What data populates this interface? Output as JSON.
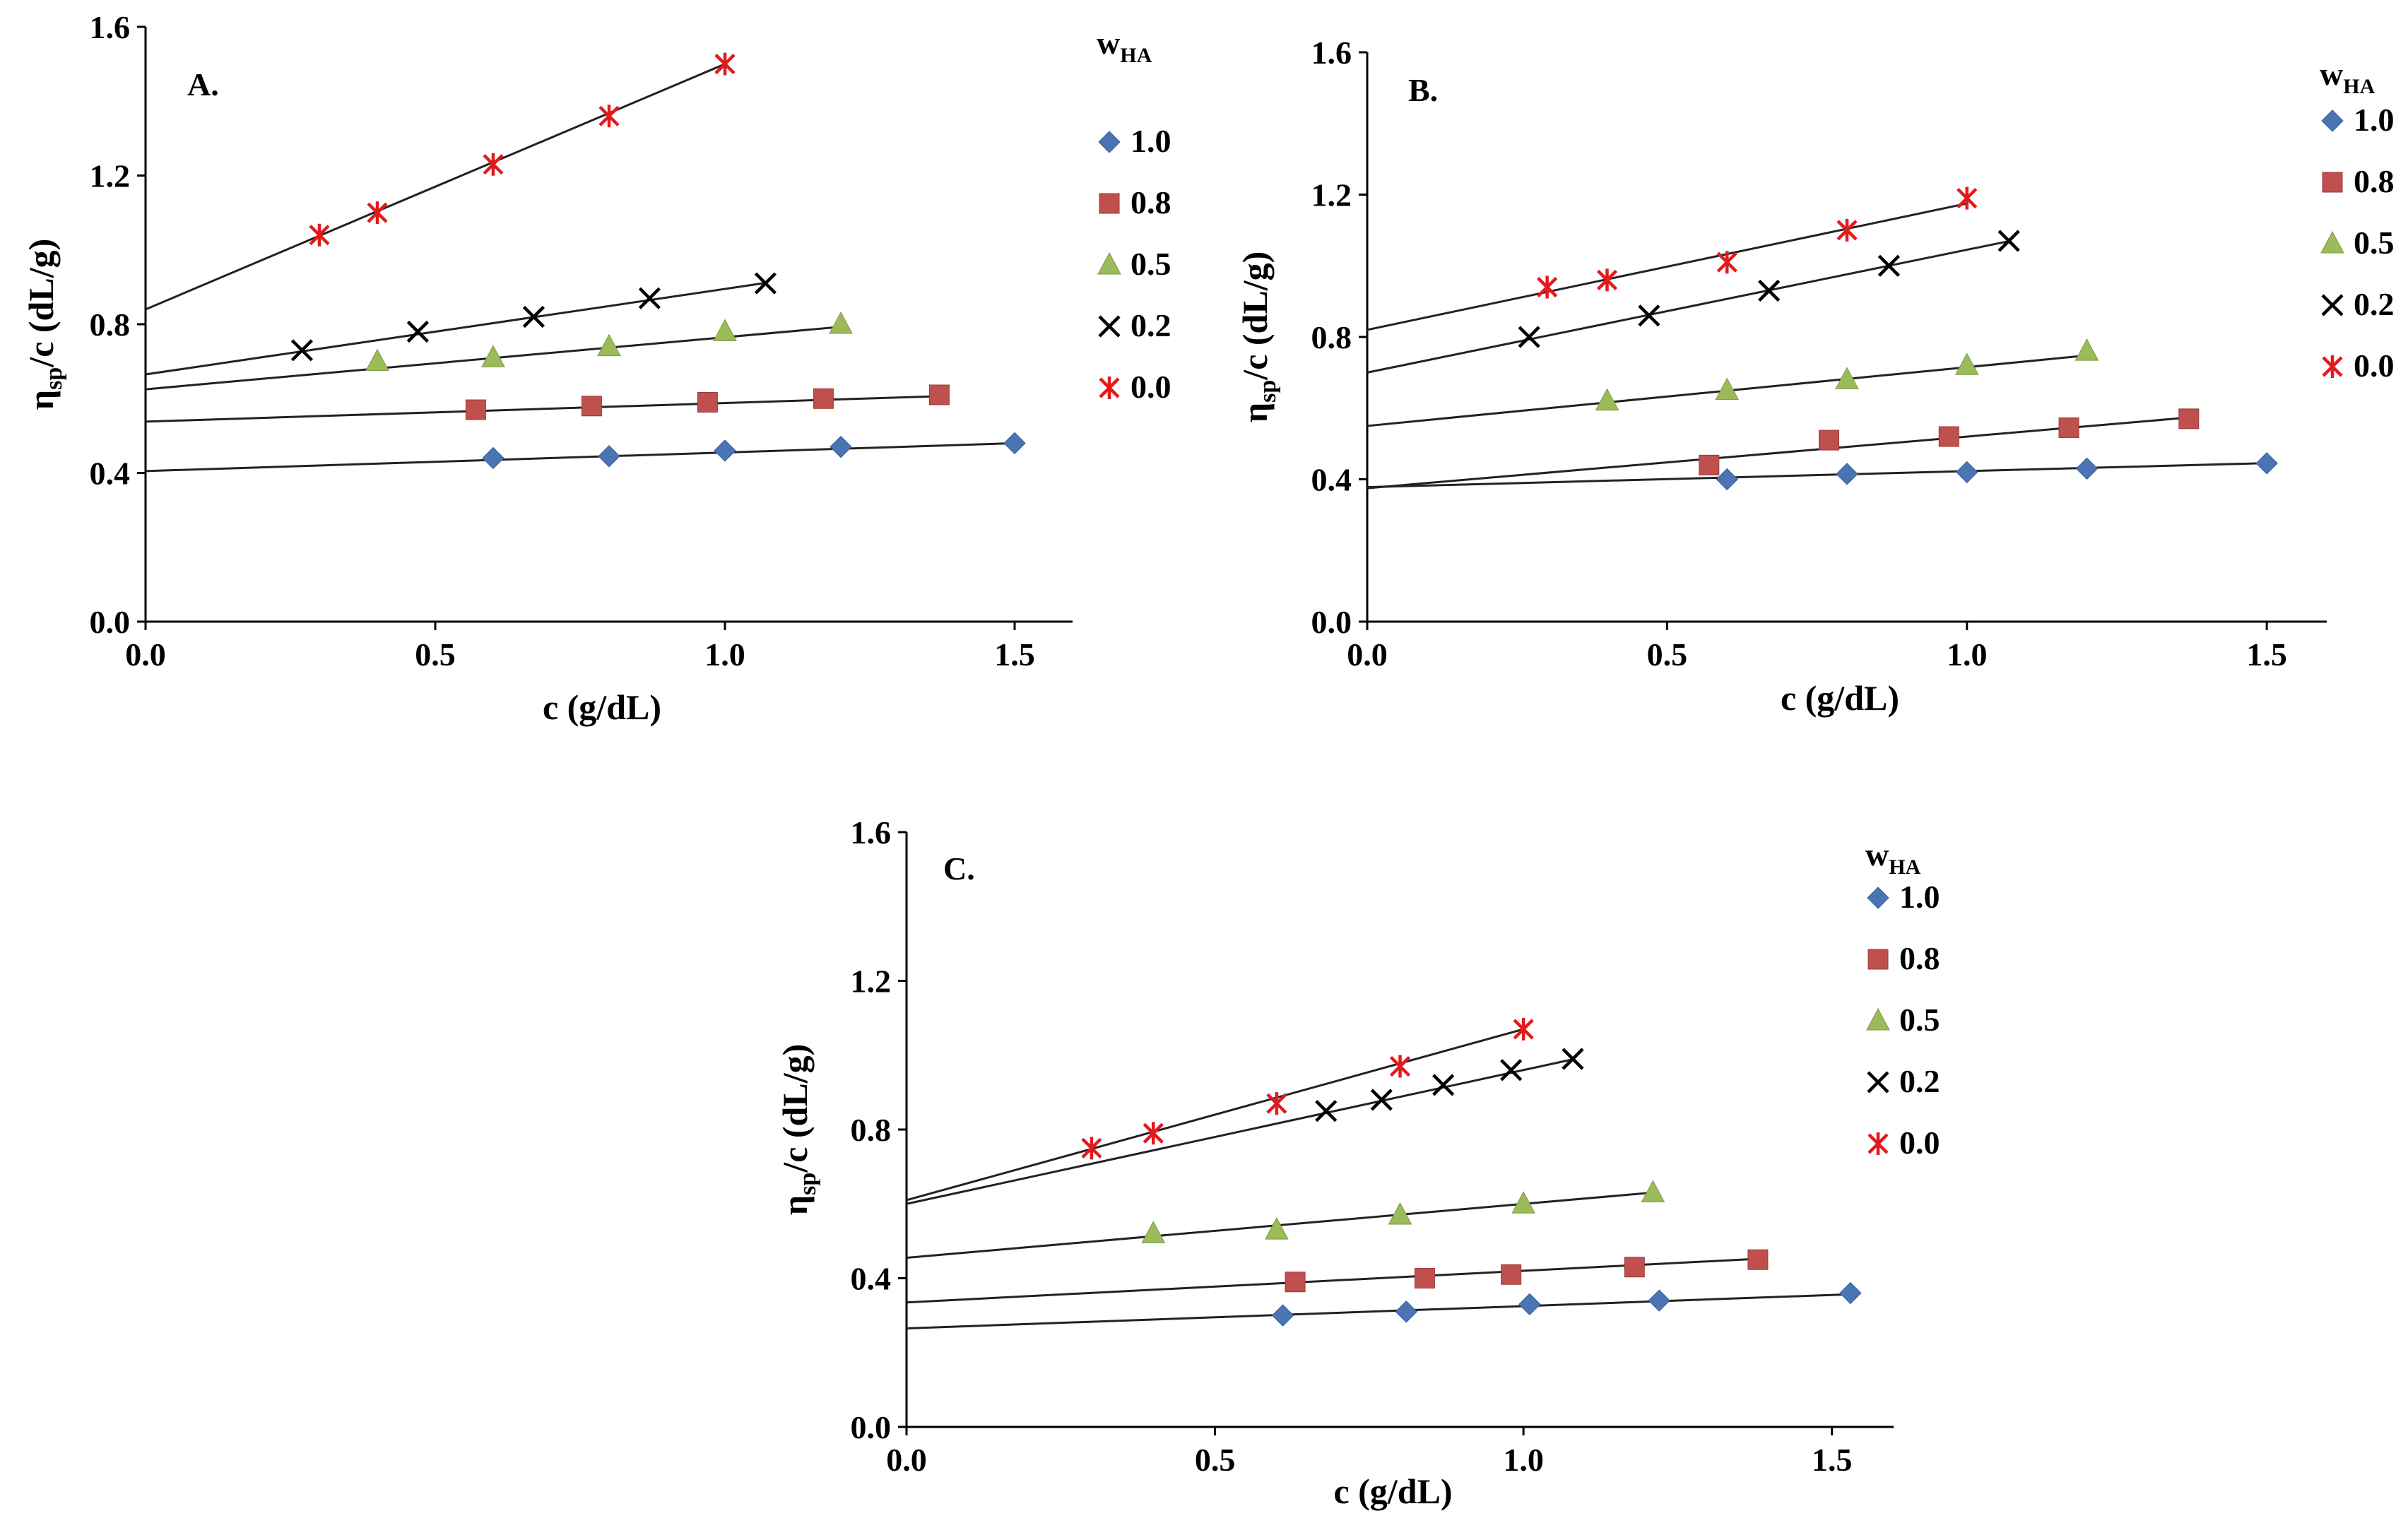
{
  "figure": {
    "axis": {
      "xlabel": "c (g/dL)",
      "ylabel_eta": "η",
      "ylabel_sub": "sp",
      "ylabel_rest": "/c (dL/g)",
      "xticks": [
        "0.0",
        "0.5",
        "1.0",
        "1.5"
      ],
      "yticks": [
        "0.0",
        "0.4",
        "0.8",
        "1.2",
        "1.6"
      ]
    },
    "legend": {
      "title_main": "w",
      "title_sub": "HA"
    }
  },
  "series_styles": [
    {
      "marker": "diamond",
      "color": "#4a74b4"
    },
    {
      "marker": "square",
      "color": "#c0504d"
    },
    {
      "marker": "triangle",
      "color": "#9bbb59"
    },
    {
      "marker": "x",
      "color": "#000000"
    },
    {
      "marker": "star",
      "color": "#e31a1c"
    }
  ],
  "chart_data": [
    {
      "type": "scatter",
      "panel": "A.",
      "xlabel": "c (g/dL)",
      "ylabel": "ηsp/c (dL/g)",
      "xlim": [
        0,
        1.6
      ],
      "ylim": [
        0,
        1.6
      ],
      "series": [
        {
          "name": "1.0",
          "x": [
            0.6,
            0.8,
            1.0,
            1.2,
            1.5
          ],
          "y": [
            0.44,
            0.445,
            0.46,
            0.47,
            0.48
          ],
          "fit": [
            0.405,
            0.05
          ]
        },
        {
          "name": "0.8",
          "x": [
            0.57,
            0.77,
            0.97,
            1.17,
            1.37
          ],
          "y": [
            0.57,
            0.58,
            0.59,
            0.6,
            0.61
          ],
          "fit": [
            0.538,
            0.05
          ]
        },
        {
          "name": "0.5",
          "x": [
            0.4,
            0.6,
            0.8,
            1.0,
            1.2
          ],
          "y": [
            0.7,
            0.71,
            0.74,
            0.78,
            0.8
          ],
          "fit": [
            0.625,
            0.14
          ]
        },
        {
          "name": "0.2",
          "x": [
            0.27,
            0.47,
            0.67,
            0.87,
            1.07
          ],
          "y": [
            0.73,
            0.78,
            0.82,
            0.87,
            0.91
          ],
          "fit": [
            0.665,
            0.23
          ]
        },
        {
          "name": "0.0",
          "x": [
            0.3,
            0.4,
            0.6,
            0.8,
            1.0
          ],
          "y": [
            1.04,
            1.1,
            1.23,
            1.36,
            1.5
          ],
          "fit": [
            0.84,
            0.66
          ]
        }
      ]
    },
    {
      "type": "scatter",
      "panel": "B.",
      "xlabel": "c (g/dL)",
      "ylabel": "ηsp/c (dL/g)",
      "xlim": [
        0,
        1.6
      ],
      "ylim": [
        0,
        1.6
      ],
      "series": [
        {
          "name": "1.0",
          "x": [
            0.6,
            0.8,
            1.0,
            1.2,
            1.5
          ],
          "y": [
            0.4,
            0.415,
            0.42,
            0.43,
            0.445
          ],
          "fit": [
            0.378,
            0.045
          ]
        },
        {
          "name": "0.8",
          "x": [
            0.57,
            0.77,
            0.97,
            1.17,
            1.37
          ],
          "y": [
            0.44,
            0.51,
            0.52,
            0.545,
            0.57
          ],
          "fit": [
            0.375,
            0.145
          ]
        },
        {
          "name": "0.5",
          "x": [
            0.4,
            0.6,
            0.8,
            1.0,
            1.2
          ],
          "y": [
            0.62,
            0.65,
            0.68,
            0.72,
            0.76
          ],
          "fit": [
            0.55,
            0.165
          ]
        },
        {
          "name": "0.2",
          "x": [
            0.27,
            0.47,
            0.67,
            0.87,
            1.07
          ],
          "y": [
            0.8,
            0.86,
            0.93,
            1.0,
            1.07
          ],
          "fit": [
            0.7,
            0.345
          ]
        },
        {
          "name": "0.0",
          "x": [
            0.3,
            0.4,
            0.6,
            0.8,
            1.0
          ],
          "y": [
            0.94,
            0.96,
            1.01,
            1.1,
            1.19
          ],
          "fit": [
            0.82,
            0.355
          ]
        }
      ]
    },
    {
      "type": "scatter",
      "panel": "C.",
      "xlabel": "c (g/dL)",
      "ylabel": "ηsp/c (dL/g)",
      "xlim": [
        0,
        1.6
      ],
      "ylim": [
        0,
        1.6
      ],
      "series": [
        {
          "name": "1.0",
          "x": [
            0.61,
            0.81,
            1.01,
            1.22,
            1.53
          ],
          "y": [
            0.3,
            0.31,
            0.33,
            0.34,
            0.36
          ],
          "fit": [
            0.265,
            0.06
          ]
        },
        {
          "name": "0.8",
          "x": [
            0.63,
            0.84,
            0.98,
            1.18,
            1.38
          ],
          "y": [
            0.39,
            0.4,
            0.41,
            0.43,
            0.45
          ],
          "fit": [
            0.335,
            0.085
          ]
        },
        {
          "name": "0.5",
          "x": [
            0.4,
            0.6,
            0.8,
            1.0,
            1.21
          ],
          "y": [
            0.52,
            0.53,
            0.57,
            0.6,
            0.63
          ],
          "fit": [
            0.455,
            0.145
          ]
        },
        {
          "name": "0.2",
          "x": [
            0.68,
            0.77,
            0.87,
            0.98,
            1.08
          ],
          "y": [
            0.85,
            0.88,
            0.92,
            0.96,
            0.99
          ],
          "fit": [
            0.6,
            0.36
          ]
        },
        {
          "name": "0.0",
          "x": [
            0.3,
            0.4,
            0.6,
            0.8,
            1.0
          ],
          "y": [
            0.75,
            0.79,
            0.87,
            0.97,
            1.07
          ],
          "fit": [
            0.61,
            0.46
          ]
        }
      ]
    }
  ]
}
